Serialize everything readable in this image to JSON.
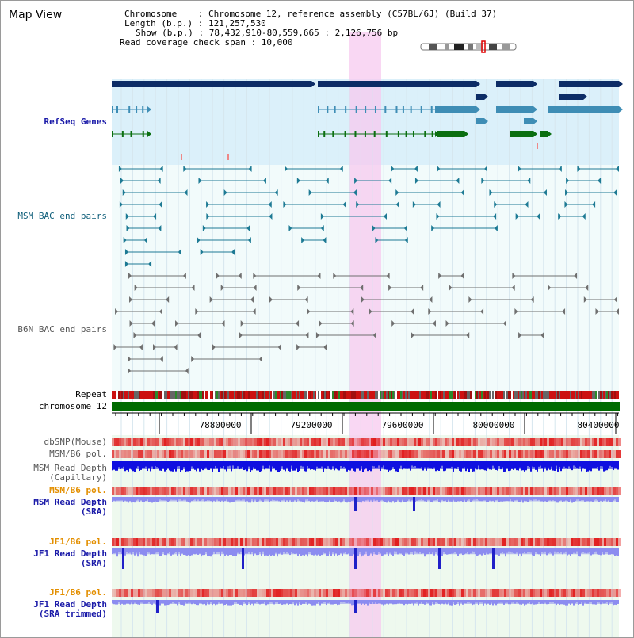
{
  "view": {
    "title": "Map View"
  },
  "info": {
    "line1": "Chromosome    : Chromosome 12, reference assembly (C57BL/6J) (Build 37)",
    "line2": "Length (b.p.) : 121,257,530",
    "line3": "Show (b.p.) : 78,432,910-80,559,665 : 2,126,756 bp",
    "line4": "Read coverage check span : 10,000"
  },
  "tracks": {
    "refseq": "RefSeq Genes",
    "msm_bac": "MSM BAC end pairs",
    "b6n_bac": "B6N BAC end pairs",
    "repeat": "Repeat",
    "chromosome": "chromosome 12",
    "dbsnp": "dbSNP(Mouse)",
    "msm_pol1": "MSM/B6 pol.",
    "msm_depth_cap": "MSM Read Depth\n(Capillary)",
    "msm_pol2": "MSM/B6 pol.",
    "msm_depth_sra": "MSM Read Depth\n(SRA)",
    "jf1_pol1": "JF1/B6 pol.",
    "jf1_depth_sra": "JF1 Read Depth\n(SRA)",
    "jf1_pol2": "JF1/B6 pol.",
    "jf1_depth_trim": "JF1 Read Depth\n(SRA trimmed)"
  },
  "axis": {
    "ticks": [
      "78800000",
      "79200000",
      "79600000",
      "80000000",
      "80400000"
    ]
  },
  "colors": {
    "refseq_bg": "#dbf0fa",
    "bac_bg": "#eafafb",
    "highlight": "#f7c9ef",
    "gene_dark": "#0d2c66",
    "gene_mid": "#3e8db5",
    "gene_green": "#0b6f11",
    "chromosome_bar": "#006b00",
    "depth_blue": "#1010e0",
    "depth_light": "#8c8cf0"
  }
}
